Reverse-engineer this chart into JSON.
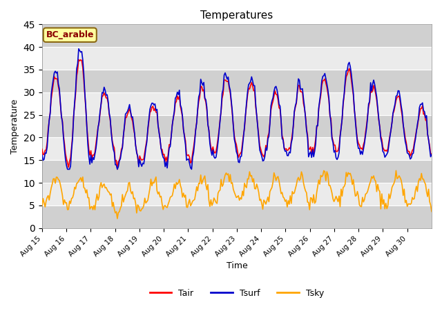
{
  "title": "Temperatures",
  "xlabel": "Time",
  "ylabel": "Temperature",
  "site_label": "BC_arable",
  "ylim": [
    0,
    45
  ],
  "line_colors": {
    "Tair": "#FF0000",
    "Tsurf": "#0000CC",
    "Tsky": "#FFA500"
  },
  "legend_labels": [
    "Tair",
    "Tsurf",
    "Tsky"
  ],
  "x_tick_labels": [
    "Aug 15",
    "Aug 16",
    "Aug 17",
    "Aug 18",
    "Aug 19",
    "Aug 20",
    "Aug 21",
    "Aug 22",
    "Aug 23",
    "Aug 24",
    "Aug 25",
    "Aug 26",
    "Aug 27",
    "Aug 28",
    "Aug 29",
    "Aug 30"
  ],
  "background_color": "#EBEBEB",
  "band_dark_color": "#D0D0D0",
  "n_days": 16,
  "n_per_day": 24,
  "day_amplitudes_tair": [
    9,
    12,
    7,
    6,
    6,
    7,
    8,
    8,
    8,
    7,
    7,
    8,
    9,
    7,
    6,
    5
  ],
  "day_means_tair": [
    25,
    26,
    23,
    20,
    21,
    22,
    23,
    25,
    24,
    23,
    24,
    25,
    26,
    24,
    23,
    21
  ],
  "tsky_means": [
    8,
    8,
    7,
    6,
    7,
    7,
    8,
    9,
    9,
    8,
    8,
    9,
    9,
    8,
    8,
    8
  ]
}
